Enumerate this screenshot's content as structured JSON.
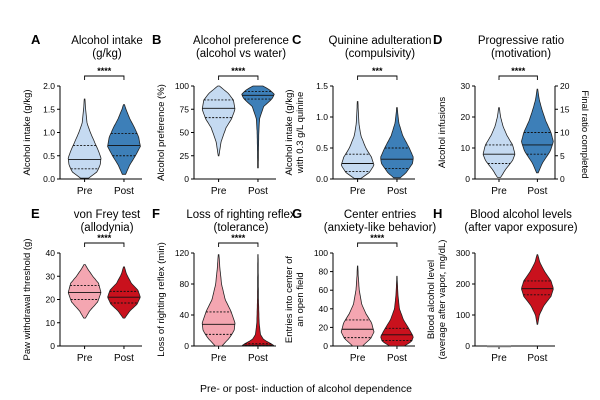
{
  "figure_xlabel": "Pre- or post- induction of alcohol dependence",
  "chart_data": [
    {
      "type": "violin",
      "letter": "A",
      "title": [
        "Alcohol intake",
        "(g/kg)"
      ],
      "ylabel": [
        "Alcohol intake (g/kg)"
      ],
      "categories": [
        "Pre",
        "Post"
      ],
      "ylim": [
        0,
        2.0
      ],
      "yticks": [
        0.0,
        0.5,
        1.0,
        1.5,
        2.0
      ],
      "ytick_labels": [
        "0.0",
        "0.5",
        "1.0",
        "1.5",
        "2.0"
      ],
      "significance": "****",
      "colors": {
        "Pre": "#c5daf1",
        "Post": "#3d7fb8"
      },
      "series": [
        {
          "name": "Pre",
          "median": 0.42,
          "q1": 0.22,
          "q3": 0.72,
          "shape": [
            [
              0.02,
              0.25
            ],
            [
              0.15,
              0.75
            ],
            [
              0.3,
              0.95
            ],
            [
              0.45,
              1.0
            ],
            [
              0.6,
              0.85
            ],
            [
              0.8,
              0.6
            ],
            [
              1.0,
              0.35
            ],
            [
              1.2,
              0.15
            ],
            [
              1.5,
              0.06
            ],
            [
              1.72,
              0.02
            ]
          ]
        },
        {
          "name": "Post",
          "median": 0.72,
          "q1": 0.5,
          "q3": 0.98,
          "shape": [
            [
              0.1,
              0.1
            ],
            [
              0.3,
              0.35
            ],
            [
              0.5,
              0.7
            ],
            [
              0.7,
              1.0
            ],
            [
              0.9,
              0.9
            ],
            [
              1.1,
              0.65
            ],
            [
              1.3,
              0.35
            ],
            [
              1.5,
              0.12
            ],
            [
              1.6,
              0.03
            ]
          ]
        }
      ]
    },
    {
      "type": "violin",
      "letter": "B",
      "title": [
        "Alcohol preference",
        "(alcohol vs water)"
      ],
      "ylabel": [
        "Alcohol preference (%)"
      ],
      "categories": [
        "Pre",
        "Post"
      ],
      "ylim": [
        0,
        100
      ],
      "yticks": [
        0,
        25,
        50,
        75,
        100
      ],
      "ytick_labels": [
        "0",
        "25",
        "50",
        "75",
        "100"
      ],
      "significance": "****",
      "colors": {
        "Pre": "#c5daf1",
        "Post": "#3d7fb8"
      },
      "series": [
        {
          "name": "Pre",
          "median": 76,
          "q1": 66,
          "q3": 85,
          "shape": [
            [
              25,
              0.02
            ],
            [
              40,
              0.15
            ],
            [
              55,
              0.45
            ],
            [
              65,
              0.8
            ],
            [
              75,
              1.0
            ],
            [
              85,
              0.9
            ],
            [
              92,
              0.6
            ],
            [
              97,
              0.25
            ],
            [
              100,
              0.05
            ]
          ]
        },
        {
          "name": "Post",
          "median": 90,
          "q1": 86,
          "q3": 94,
          "shape": [
            [
              12,
              0.02
            ],
            [
              30,
              0.03
            ],
            [
              50,
              0.05
            ],
            [
              65,
              0.1
            ],
            [
              78,
              0.35
            ],
            [
              86,
              0.85
            ],
            [
              91,
              1.0
            ],
            [
              96,
              0.7
            ],
            [
              100,
              0.3
            ]
          ]
        }
      ]
    },
    {
      "type": "violin",
      "letter": "C",
      "title": [
        "Quinine adulteration",
        "(compulsivity)"
      ],
      "ylabel": [
        "Alcohol intake (g/kg)",
        "with 0.3 g/L quinine"
      ],
      "categories": [
        "Pre",
        "Post"
      ],
      "ylim": [
        0,
        1.5
      ],
      "yticks": [
        0.0,
        0.5,
        1.0,
        1.5
      ],
      "ytick_labels": [
        "0.0",
        "0.5",
        "1.0",
        "1.5"
      ],
      "significance": "***",
      "colors": {
        "Pre": "#c5daf1",
        "Post": "#3d7fb8"
      },
      "series": [
        {
          "name": "Pre",
          "median": 0.25,
          "q1": 0.12,
          "q3": 0.4,
          "shape": [
            [
              0.01,
              0.2
            ],
            [
              0.1,
              0.7
            ],
            [
              0.22,
              1.0
            ],
            [
              0.35,
              0.85
            ],
            [
              0.5,
              0.5
            ],
            [
              0.7,
              0.2
            ],
            [
              0.9,
              0.08
            ],
            [
              1.1,
              0.04
            ],
            [
              1.25,
              0.02
            ]
          ]
        },
        {
          "name": "Post",
          "median": 0.32,
          "q1": 0.17,
          "q3": 0.5,
          "shape": [
            [
              0.02,
              0.2
            ],
            [
              0.1,
              0.55
            ],
            [
              0.25,
              0.95
            ],
            [
              0.35,
              1.0
            ],
            [
              0.5,
              0.75
            ],
            [
              0.7,
              0.35
            ],
            [
              0.9,
              0.12
            ],
            [
              1.05,
              0.05
            ],
            [
              1.15,
              0.02
            ]
          ]
        }
      ]
    },
    {
      "type": "violin",
      "letter": "D",
      "title": [
        "Progressive ratio",
        "(motivation)"
      ],
      "ylabel": [
        "Alcohol infusions"
      ],
      "y2label": "Final ratio completed",
      "categories": [
        "Pre",
        "Post"
      ],
      "ylim": [
        0,
        30
      ],
      "yticks": [
        0,
        10,
        20,
        30
      ],
      "ytick_labels": [
        "0",
        "10",
        "20",
        "30"
      ],
      "y2ticks": [
        0,
        5,
        10,
        15,
        20
      ],
      "y2tick_labels": [
        "0",
        "5",
        "10",
        "15",
        "20"
      ],
      "significance": "****",
      "colors": {
        "Pre": "#c5daf1",
        "Post": "#3d7fb8"
      },
      "series": [
        {
          "name": "Pre",
          "median": 8,
          "q1": 5,
          "q3": 11,
          "shape": [
            [
              0.5,
              0.1
            ],
            [
              3,
              0.4
            ],
            [
              6,
              0.85
            ],
            [
              8,
              1.0
            ],
            [
              11,
              0.85
            ],
            [
              14,
              0.5
            ],
            [
              17,
              0.25
            ],
            [
              20,
              0.1
            ],
            [
              23,
              0.02
            ]
          ]
        },
        {
          "name": "Post",
          "median": 11,
          "q1": 8,
          "q3": 15,
          "shape": [
            [
              2,
              0.05
            ],
            [
              5,
              0.3
            ],
            [
              9,
              0.8
            ],
            [
              12,
              1.0
            ],
            [
              15,
              0.85
            ],
            [
              19,
              0.5
            ],
            [
              23,
              0.25
            ],
            [
              26,
              0.1
            ],
            [
              29,
              0.02
            ]
          ]
        }
      ]
    },
    {
      "type": "violin",
      "letter": "E",
      "title": [
        "von Frey test",
        "(allodynia)"
      ],
      "ylabel": [
        "Paw withdrawal threshold (g)"
      ],
      "categories": [
        "Pre",
        "Post"
      ],
      "ylim": [
        0,
        40
      ],
      "yticks": [
        0,
        10,
        20,
        30,
        40
      ],
      "ytick_labels": [
        "0",
        "10",
        "20",
        "30",
        "40"
      ],
      "significance": "****",
      "colors": {
        "Pre": "#f4a6b1",
        "Post": "#c9111d"
      },
      "series": [
        {
          "name": "Pre",
          "median": 23,
          "q1": 20,
          "q3": 26,
          "shape": [
            [
              12,
              0.05
            ],
            [
              15,
              0.3
            ],
            [
              19,
              0.8
            ],
            [
              23,
              1.0
            ],
            [
              27,
              0.85
            ],
            [
              30,
              0.5
            ],
            [
              33,
              0.2
            ],
            [
              35,
              0.04
            ]
          ]
        },
        {
          "name": "Post",
          "median": 21,
          "q1": 18.5,
          "q3": 23.5,
          "shape": [
            [
              12,
              0.05
            ],
            [
              15,
              0.35
            ],
            [
              18,
              0.8
            ],
            [
              21,
              1.0
            ],
            [
              24,
              0.85
            ],
            [
              27,
              0.45
            ],
            [
              31,
              0.15
            ],
            [
              34,
              0.03
            ]
          ]
        }
      ]
    },
    {
      "type": "violin",
      "letter": "F",
      "title": [
        "Loss of righting reflex",
        "(tolerance)"
      ],
      "ylabel": [
        "Loss of righting reflex (min)"
      ],
      "categories": [
        "Pre",
        "Post"
      ],
      "ylim": [
        0,
        120
      ],
      "yticks": [
        0,
        40,
        80,
        120
      ],
      "ytick_labels": [
        "0",
        "40",
        "80",
        "120"
      ],
      "significance": "****",
      "colors": {
        "Pre": "#f4a6b1",
        "Post": "#c9111d"
      },
      "series": [
        {
          "name": "Pre",
          "median": 28,
          "q1": 15,
          "q3": 44,
          "shape": [
            [
              0,
              0.2
            ],
            [
              10,
              0.65
            ],
            [
              20,
              0.95
            ],
            [
              30,
              1.0
            ],
            [
              45,
              0.75
            ],
            [
              60,
              0.4
            ],
            [
              80,
              0.18
            ],
            [
              100,
              0.08
            ],
            [
              118,
              0.02
            ]
          ]
        },
        {
          "name": "Post",
          "median": 1,
          "q1": 0,
          "q3": 3,
          "shape": [
            [
              0,
              1.0
            ],
            [
              3,
              0.8
            ],
            [
              8,
              0.35
            ],
            [
              15,
              0.15
            ],
            [
              30,
              0.07
            ],
            [
              60,
              0.03
            ],
            [
              100,
              0.015
            ],
            [
              118,
              0.01
            ]
          ]
        }
      ]
    },
    {
      "type": "violin",
      "letter": "G",
      "title": [
        "Center entries",
        "(anxiety-like behavior)"
      ],
      "ylabel": [
        "Entries into center of",
        "an open field"
      ],
      "categories": [
        "Pre",
        "Post"
      ],
      "ylim": [
        0,
        100
      ],
      "yticks": [
        0,
        20,
        40,
        60,
        80,
        100
      ],
      "ytick_labels": [
        "0",
        "20",
        "40",
        "60",
        "80",
        "100"
      ],
      "significance": "****",
      "colors": {
        "Pre": "#f4a6b1",
        "Post": "#c9111d"
      },
      "series": [
        {
          "name": "Pre",
          "median": 18,
          "q1": 9,
          "q3": 28,
          "shape": [
            [
              0,
              0.3
            ],
            [
              8,
              0.8
            ],
            [
              15,
              1.0
            ],
            [
              25,
              0.85
            ],
            [
              35,
              0.5
            ],
            [
              45,
              0.25
            ],
            [
              60,
              0.1
            ],
            [
              75,
              0.04
            ],
            [
              86,
              0.01
            ]
          ]
        },
        {
          "name": "Post",
          "median": 12,
          "q1": 6,
          "q3": 19,
          "shape": [
            [
              0,
              0.45
            ],
            [
              5,
              0.9
            ],
            [
              10,
              1.0
            ],
            [
              18,
              0.75
            ],
            [
              28,
              0.4
            ],
            [
              40,
              0.15
            ],
            [
              55,
              0.06
            ],
            [
              70,
              0.02
            ],
            [
              75,
              0.01
            ]
          ]
        }
      ]
    },
    {
      "type": "violin",
      "letter": "H",
      "title": [
        "Blood alcohol levels",
        "(after vapor exposure)"
      ],
      "ylabel": [
        "Blood alcohol level",
        "(average after vapor, mg/dL)"
      ],
      "categories": [
        "Pre",
        "Post"
      ],
      "ylim": [
        0,
        300
      ],
      "yticks": [
        0,
        100,
        200,
        300
      ],
      "ytick_labels": [
        "0",
        "100",
        "200",
        "300"
      ],
      "significance": "",
      "colors": {
        "Pre": "#f4a6b1",
        "Post": "#c9111d"
      },
      "series": [
        {
          "name": "Pre",
          "median": 0,
          "q1": 0,
          "q3": 0,
          "shape": []
        },
        {
          "name": "Post",
          "median": 185,
          "q1": 165,
          "q3": 210,
          "shape": [
            [
              70,
              0.02
            ],
            [
              100,
              0.12
            ],
            [
              130,
              0.4
            ],
            [
              160,
              0.85
            ],
            [
              185,
              1.0
            ],
            [
              210,
              0.85
            ],
            [
              240,
              0.45
            ],
            [
              270,
              0.15
            ],
            [
              295,
              0.02
            ]
          ]
        }
      ]
    }
  ]
}
